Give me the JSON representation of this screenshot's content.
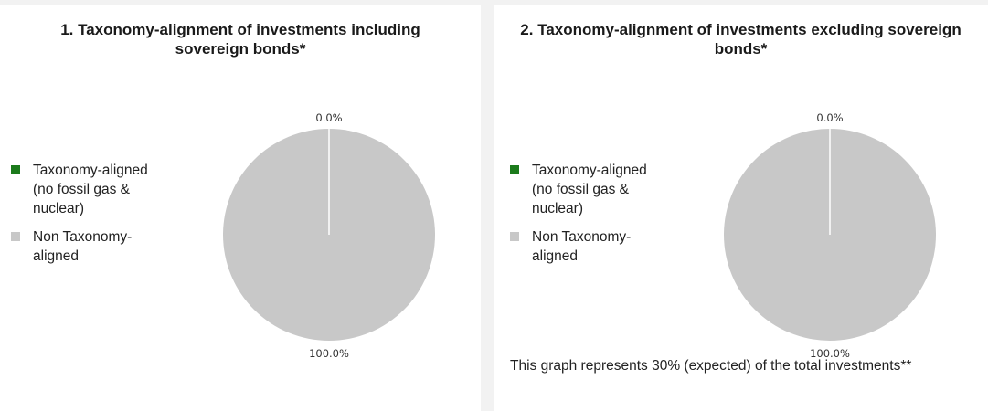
{
  "colors": {
    "aligned": "#1b7a1b",
    "non_aligned": "#c8c8c8",
    "separator": "#ffffff"
  },
  "legend": {
    "aligned": "Taxonomy-aligned (no fossil gas & nuclear)",
    "non_aligned": "Non Taxonomy-aligned"
  },
  "chart_data": [
    {
      "type": "pie",
      "title": "1. Taxonomy-alignment of investments including sovereign bonds*",
      "categories": [
        "Taxonomy-aligned (no fossil gas & nuclear)",
        "Non Taxonomy-aligned"
      ],
      "values": [
        0.0,
        100.0
      ],
      "data_labels": [
        "0.0%",
        "100.0%"
      ],
      "legend_position": "left"
    },
    {
      "type": "pie",
      "title": "2. Taxonomy-alignment of investments excluding sovereign bonds*",
      "categories": [
        "Taxonomy-aligned (no fossil gas & nuclear)",
        "Non Taxonomy-aligned"
      ],
      "values": [
        0.0,
        100.0
      ],
      "data_labels": [
        "0.0%",
        "100.0%"
      ],
      "legend_position": "left"
    }
  ],
  "footnote": "This graph represents 30% (expected) of the total investments**"
}
